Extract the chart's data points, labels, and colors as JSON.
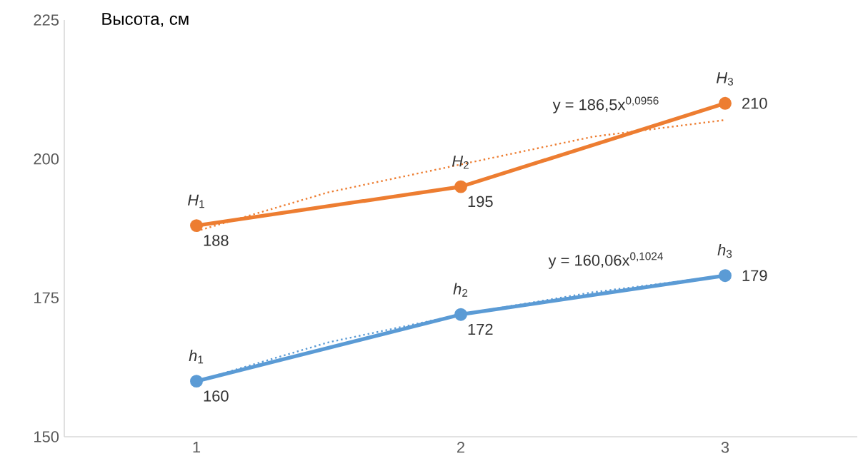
{
  "chart_data": {
    "type": "line",
    "ylabel": "Высота, см",
    "x": [
      1,
      2,
      3
    ],
    "xlim": [
      0.5,
      3.5
    ],
    "xticks": [
      1,
      2,
      3
    ],
    "ylim": [
      150,
      225
    ],
    "yticks": [
      150,
      175,
      200,
      225
    ],
    "grid": false,
    "marker": "circle",
    "line_style": "solid",
    "series": [
      {
        "color": "#ed7d31",
        "values": [
          188,
          195,
          210
        ],
        "value_labels": [
          "188",
          "195",
          "210"
        ]
      },
      {
        "color": "#5b9bd5",
        "values": [
          160,
          172,
          179
        ],
        "value_labels": [
          "160",
          "172",
          "179"
        ]
      },
      {
        "type": "line",
        "color": "#ed7d31",
        "x": [
          1,
          1.5,
          2,
          2.5,
          3
        ],
        "values": [
          187,
          194,
          199,
          204,
          207
        ],
        "marker": "none",
        "line_style": "dotted"
      },
      {
        "type": "line",
        "color": "#5b9bd5",
        "x": [
          1,
          1.5,
          2,
          2.5,
          3
        ],
        "values": [
          160,
          167,
          172,
          176,
          179
        ],
        "marker": "none",
        "line_style": "dotted"
      }
    ],
    "annotations": [
      {
        "text": "*H*$_{1}$",
        "x": 1,
        "y": 188
      },
      {
        "text": "*H*$_{2}$",
        "x": 2,
        "y": 195
      },
      {
        "text": "*H*$_{3}$",
        "x": 3,
        "y": 210
      },
      {
        "text": "*h*$_{1}$",
        "x": 1,
        "y": 160
      },
      {
        "text": "*h*$_{2}$",
        "x": 2,
        "y": 172
      },
      {
        "text": "*h*$_{3}$",
        "x": 3,
        "y": 179
      },
      {
        "text": "y = 186,5x$^{0,0956}$",
        "x": 2.55,
        "y": 205
      },
      {
        "text": "y = 160,06x$^{0,1024}$",
        "x": 2.55,
        "y": 177
      }
    ]
  }
}
